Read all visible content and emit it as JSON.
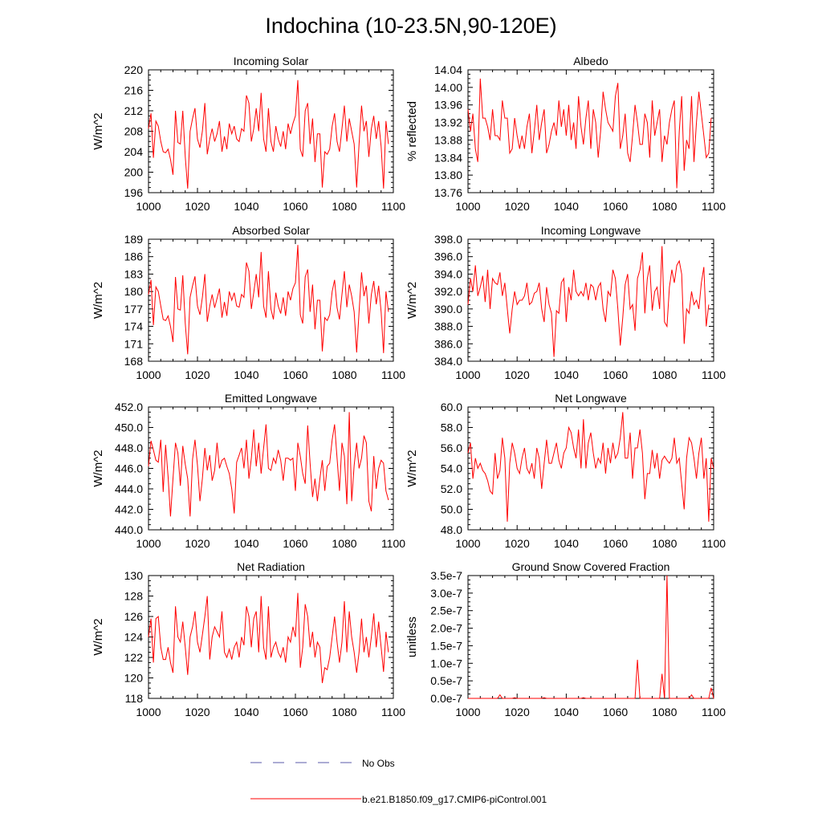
{
  "page_title": "Indochina (10-23.5N,90-120E)",
  "legend": {
    "obs_label": "No Obs",
    "obs_color": "#5a5aaa",
    "model_label": "b.e21.B1850.f09_g17.CMIP6-piControl.001",
    "model_color": "#ff0000"
  },
  "chart_data": [
    {
      "type": "line",
      "title": "Incoming Solar",
      "ylabel": "W/m^2",
      "xlim": [
        1000,
        1100
      ],
      "ylim": [
        196,
        220
      ],
      "xticks": [
        "1000",
        "1020",
        "1040",
        "1060",
        "1080",
        "1100"
      ],
      "yticks": [
        "196",
        "200",
        "204",
        "208",
        "212",
        "216",
        "220"
      ],
      "series": [
        {
          "name": "b.e21.B1850.f09_g17.CMIP6-piControl.001",
          "x0": 1000,
          "values": [
            208.5,
            211.5,
            202.8,
            210.0,
            209.0,
            206.0,
            204.0,
            203.8,
            204.5,
            202.5,
            199.5,
            212.0,
            205.8,
            205.5,
            212.0,
            203.0,
            196.8,
            208.0,
            210.5,
            212.5,
            206.5,
            204.8,
            208.0,
            213.5,
            203.5,
            206.5,
            208.5,
            206.0,
            207.5,
            210.0,
            204.0,
            207.0,
            204.5,
            209.5,
            207.5,
            209.0,
            206.5,
            206.0,
            208.5,
            208.0,
            215.0,
            213.5,
            206.0,
            208.5,
            212.5,
            208.0,
            215.5,
            206.5,
            204.0,
            212.5,
            206.0,
            204.0,
            209.0,
            206.5,
            205.0,
            208.0,
            204.5,
            209.5,
            207.5,
            209.5,
            211.0,
            218.0,
            204.5,
            203.0,
            212.0,
            213.5,
            205.5,
            210.5,
            202.0,
            207.5,
            207.5,
            197.0,
            204.0,
            203.5,
            204.5,
            209.0,
            211.5,
            206.0,
            204.0,
            208.5,
            213.0,
            206.0,
            210.5,
            208.0,
            205.5,
            197.0,
            205.5,
            213.0,
            208.0,
            210.0,
            203.0,
            208.5,
            211.0,
            206.5,
            210.0,
            205.0,
            196.8,
            210.0,
            205.5
          ]
        }
      ]
    },
    {
      "type": "line",
      "title": "Albedo",
      "ylabel": "% reflected",
      "xlim": [
        1000,
        1100
      ],
      "ylim": [
        13.76,
        14.04
      ],
      "xticks": [
        "1000",
        "1020",
        "1040",
        "1060",
        "1080",
        "1100"
      ],
      "yticks": [
        "13.76",
        "13.80",
        "13.84",
        "13.88",
        "13.92",
        "13.96",
        "14.00",
        "14.04"
      ],
      "series": [
        {
          "name": "b.e21.B1850.f09_g17.CMIP6-piControl.001",
          "x0": 1000,
          "values": [
            13.95,
            13.9,
            13.94,
            13.86,
            13.83,
            14.02,
            13.93,
            13.93,
            13.91,
            13.88,
            13.95,
            13.89,
            13.89,
            13.88,
            13.97,
            13.93,
            13.93,
            13.85,
            13.86,
            13.93,
            13.89,
            13.86,
            13.89,
            13.86,
            13.91,
            13.94,
            13.85,
            13.9,
            13.96,
            13.88,
            13.92,
            13.95,
            13.85,
            13.87,
            13.9,
            13.92,
            13.89,
            13.97,
            13.91,
            13.95,
            13.89,
            13.96,
            13.88,
            13.92,
            13.86,
            13.98,
            13.91,
            13.87,
            13.93,
            13.97,
            13.86,
            13.95,
            13.92,
            13.84,
            13.9,
            13.99,
            13.95,
            13.92,
            13.91,
            13.9,
            13.98,
            14.01,
            13.86,
            13.89,
            13.94,
            13.85,
            13.83,
            13.89,
            13.96,
            13.92,
            13.87,
            13.87,
            13.94,
            13.92,
            13.84,
            13.97,
            13.89,
            13.92,
            13.95,
            13.83,
            13.89,
            13.87,
            13.92,
            13.95,
            13.97,
            13.77,
            13.9,
            13.98,
            13.81,
            13.88,
            13.86,
            13.98,
            13.83,
            13.92,
            13.99,
            13.94,
            13.89,
            13.84,
            13.85,
            13.93
          ]
        }
      ]
    },
    {
      "type": "line",
      "title": "Absorbed Solar",
      "ylabel": "W/m^2",
      "xlim": [
        1000,
        1100
      ],
      "ylim": [
        168,
        189
      ],
      "xticks": [
        "1000",
        "1020",
        "1040",
        "1060",
        "1080",
        "1100"
      ],
      "yticks": [
        "168",
        "171",
        "174",
        "177",
        "180",
        "183",
        "186",
        "189"
      ],
      "series": [
        {
          "name": "b.e21.B1850.f09_g17.CMIP6-piControl.001",
          "x0": 1000,
          "values": [
            179.5,
            182.0,
            174.2,
            180.8,
            180.0,
            177.5,
            175.2,
            175.0,
            175.8,
            174.0,
            171.3,
            182.5,
            177.0,
            176.8,
            182.8,
            174.5,
            169.2,
            179.0,
            181.0,
            182.6,
            177.5,
            176.0,
            179.0,
            183.0,
            174.8,
            177.5,
            179.5,
            177.2,
            178.8,
            180.5,
            175.5,
            178.2,
            175.8,
            180.0,
            178.5,
            179.8,
            177.5,
            177.3,
            179.5,
            179.0,
            185.0,
            183.5,
            177.0,
            179.8,
            183.0,
            179.0,
            186.8,
            177.5,
            175.5,
            183.5,
            177.0,
            175.2,
            179.8,
            177.5,
            176.2,
            179.0,
            175.8,
            180.0,
            178.5,
            180.5,
            181.5,
            188.0,
            176.0,
            174.5,
            182.5,
            183.8,
            176.5,
            181.2,
            173.5,
            178.5,
            178.5,
            169.7,
            175.5,
            175.0,
            176.0,
            180.0,
            182.0,
            177.2,
            175.2,
            179.5,
            183.5,
            177.3,
            181.2,
            179.2,
            176.5,
            169.5,
            176.5,
            183.3,
            179.2,
            181.0,
            174.5,
            179.5,
            181.8,
            177.8,
            181.0,
            176.5,
            169.4,
            180.0,
            176.5
          ]
        }
      ]
    },
    {
      "type": "line",
      "title": "Incoming Longwave",
      "ylabel": "W/m^2",
      "xlim": [
        1000,
        1100
      ],
      "ylim": [
        384.0,
        398.0
      ],
      "xticks": [
        "1000",
        "1020",
        "1040",
        "1060",
        "1080",
        "1100"
      ],
      "yticks": [
        "384.0",
        "386.0",
        "388.0",
        "390.0",
        "392.0",
        "394.0",
        "396.0",
        "398.0"
      ],
      "series": [
        {
          "name": "b.e21.B1850.f09_g17.CMIP6-piControl.001",
          "x0": 1000,
          "values": [
            390.5,
            393.5,
            392.0,
            395.0,
            391.5,
            392.5,
            393.8,
            390.8,
            394.5,
            390.0,
            393.5,
            393.0,
            392.8,
            394.2,
            391.5,
            393.0,
            390.0,
            387.2,
            390.0,
            392.0,
            390.5,
            391.0,
            391.0,
            391.5,
            393.0,
            390.5,
            390.8,
            391.8,
            392.0,
            393.0,
            390.0,
            388.5,
            392.5,
            390.5,
            389.5,
            384.5,
            389.8,
            389.5,
            393.0,
            393.5,
            388.5,
            392.5,
            391.0,
            394.5,
            392.0,
            391.5,
            392.0,
            391.5,
            393.0,
            391.0,
            392.8,
            392.5,
            391.0,
            392.5,
            393.0,
            390.0,
            388.5,
            392.0,
            391.5,
            394.5,
            393.5,
            390.0,
            385.8,
            389.0,
            392.8,
            394.0,
            390.0,
            390.5,
            387.5,
            393.5,
            394.5,
            396.5,
            389.5,
            393.5,
            395.0,
            389.8,
            392.0,
            392.5,
            390.0,
            397.2,
            388.5,
            388.0,
            392.5,
            394.5,
            393.0,
            395.0,
            395.5,
            394.0,
            386.0,
            390.0,
            389.5,
            392.0,
            390.5,
            391.0,
            390.0,
            393.0,
            394.8,
            388.0,
            390.5
          ]
        }
      ]
    },
    {
      "type": "line",
      "title": "Emitted Longwave",
      "ylabel": "W/m^2",
      "xlim": [
        1000,
        1100
      ],
      "ylim": [
        440.0,
        452.0
      ],
      "xticks": [
        "1000",
        "1020",
        "1040",
        "1060",
        "1080",
        "1100"
      ],
      "yticks": [
        "440.0",
        "442.0",
        "444.0",
        "446.0",
        "448.0",
        "450.0",
        "452.0"
      ],
      "series": [
        {
          "name": "b.e21.B1850.f09_g17.CMIP6-piControl.001",
          "x0": 1000,
          "values": [
            446.2,
            448.7,
            447.8,
            446.8,
            446.6,
            448.8,
            443.7,
            448.3,
            445.2,
            441.3,
            445.0,
            448.5,
            447.5,
            444.3,
            448.2,
            446.4,
            445.0,
            441.3,
            446.9,
            448.8,
            446.3,
            442.8,
            445.0,
            448.0,
            445.8,
            447.3,
            444.8,
            445.8,
            448.5,
            446.0,
            446.8,
            447.0,
            446.2,
            445.5,
            444.0,
            441.6,
            446.6,
            447.3,
            448.0,
            446.0,
            448.8,
            445.0,
            447.0,
            449.8,
            446.2,
            448.5,
            445.5,
            448.0,
            450.3,
            446.0,
            445.8,
            447.0,
            446.5,
            447.8,
            446.8,
            444.8,
            447.0,
            447.0,
            446.8,
            447.0,
            443.8,
            448.5,
            447.2,
            445.5,
            444.5,
            450.2,
            446.5,
            443.2,
            445.0,
            442.8,
            445.0,
            446.8,
            443.8,
            446.2,
            446.5,
            448.8,
            450.3,
            447.0,
            443.8,
            448.5,
            447.2,
            442.5,
            451.5,
            442.8,
            446.3,
            448.5,
            446.0,
            447.0,
            449.2,
            448.5,
            442.8,
            441.8,
            447.2,
            444.0,
            446.0,
            446.8,
            446.5,
            443.8,
            442.9
          ]
        }
      ]
    },
    {
      "type": "line",
      "title": "Net Longwave",
      "ylabel": "W/m^2",
      "xlim": [
        1000,
        1100
      ],
      "ylim": [
        48.0,
        60.0
      ],
      "xticks": [
        "1000",
        "1020",
        "1040",
        "1060",
        "1080",
        "1100"
      ],
      "yticks": [
        "48.0",
        "50.0",
        "52.0",
        "54.0",
        "56.0",
        "58.0",
        "60.0"
      ],
      "series": [
        {
          "name": "b.e21.B1850.f09_g17.CMIP6-piControl.001",
          "x0": 1000,
          "values": [
            55.5,
            56.5,
            53.0,
            55.0,
            54.0,
            54.5,
            53.8,
            53.5,
            52.8,
            51.8,
            51.5,
            55.5,
            53.0,
            53.8,
            57.0,
            55.0,
            48.8,
            54.5,
            56.5,
            55.5,
            54.0,
            53.5,
            55.0,
            56.0,
            54.0,
            53.5,
            54.5,
            53.0,
            56.0,
            55.0,
            52.0,
            54.5,
            56.8,
            54.5,
            54.5,
            55.5,
            56.5,
            54.8,
            54.0,
            55.5,
            56.0,
            58.0,
            57.5,
            56.0,
            55.0,
            57.8,
            54.0,
            58.8,
            54.0,
            56.5,
            57.5,
            55.5,
            54.0,
            55.0,
            54.5,
            56.5,
            53.5,
            56.0,
            54.5,
            56.5,
            55.0,
            55.5,
            57.0,
            59.5,
            55.0,
            55.0,
            57.5,
            53.0,
            56.0,
            56.0,
            57.8,
            55.5,
            51.0,
            53.5,
            53.5,
            55.8,
            54.0,
            55.5,
            53.0,
            54.8,
            55.2,
            54.8,
            54.5,
            55.0,
            57.0,
            54.5,
            55.0,
            52.5,
            50.0,
            55.0,
            57.0,
            56.5,
            55.0,
            53.0,
            55.5,
            57.0,
            53.0,
            55.0,
            48.8,
            55.0,
            54.0
          ]
        }
      ]
    },
    {
      "type": "line",
      "title": "Net Radiation",
      "ylabel": "W/m^2",
      "xlim": [
        1000,
        1100
      ],
      "ylim": [
        118,
        130
      ],
      "xticks": [
        "1000",
        "1020",
        "1040",
        "1060",
        "1080",
        "1100"
      ],
      "yticks": [
        "118",
        "120",
        "122",
        "124",
        "126",
        "128",
        "130"
      ],
      "series": [
        {
          "name": "b.e21.B1850.f09_g17.CMIP6-piControl.001",
          "x0": 1000,
          "values": [
            124.0,
            125.8,
            121.5,
            125.8,
            126.0,
            123.0,
            121.8,
            121.8,
            123.0,
            121.5,
            120.5,
            127.0,
            124.0,
            123.5,
            125.5,
            123.0,
            120.3,
            124.0,
            125.0,
            126.5,
            123.5,
            122.5,
            124.2,
            126.0,
            128.0,
            121.8,
            124.0,
            125.0,
            124.5,
            124.0,
            126.5,
            122.5,
            122.0,
            122.8,
            121.8,
            123.0,
            123.5,
            122.0,
            124.0,
            123.2,
            127.0,
            126.0,
            123.0,
            125.8,
            126.5,
            122.5,
            128.0,
            123.0,
            121.8,
            127.0,
            122.0,
            123.0,
            123.5,
            122.5,
            122.0,
            123.0,
            121.5,
            124.0,
            123.5,
            125.0,
            124.0,
            128.3,
            121.0,
            123.0,
            127.2,
            126.0,
            123.0,
            124.5,
            122.0,
            123.5,
            123.0,
            119.5,
            121.0,
            120.8,
            122.0,
            124.0,
            126.0,
            123.5,
            121.5,
            123.5,
            127.5,
            122.5,
            126.5,
            124.0,
            122.5,
            120.5,
            122.5,
            125.8,
            122.5,
            124.0,
            122.0,
            124.0,
            126.3,
            123.0,
            125.5,
            123.0,
            120.6,
            124.5,
            122.5
          ]
        }
      ]
    },
    {
      "type": "line",
      "title": "Ground Snow Covered Fraction",
      "ylabel": "unitless",
      "xlim": [
        1000,
        1100
      ],
      "ylim": [
        0,
        3.5e-07
      ],
      "xticks": [
        "1000",
        "1020",
        "1040",
        "1060",
        "1080",
        "1100"
      ],
      "yticks": [
        "0.0e-7",
        "0.5e-7",
        "1.0e-7",
        "1.5e-7",
        "2.0e-7",
        "2.5e-7",
        "3.0e-7",
        "3.5e-7"
      ],
      "series": [
        {
          "name": "b.e21.B1850.f09_g17.CMIP6-piControl.001",
          "x0": 1000,
          "values": [
            0,
            0,
            0,
            0,
            0,
            0,
            0,
            0,
            0,
            0,
            0,
            0,
            0,
            1e-08,
            0,
            0,
            0,
            0,
            0,
            2e-09,
            0,
            0,
            0,
            0,
            0,
            0,
            0,
            0,
            0,
            0,
            0,
            2e-09,
            0,
            0,
            0,
            0,
            0,
            0,
            0,
            0,
            0,
            0,
            0,
            0,
            0,
            0,
            0,
            2e-09,
            0,
            0,
            0,
            0,
            0,
            0,
            0,
            0,
            0,
            0,
            0,
            0,
            0,
            0,
            0,
            0,
            0,
            0,
            0,
            0,
            0,
            1.1e-07,
            0,
            0,
            0,
            0,
            0,
            0,
            0,
            0,
            0,
            7e-08,
            0,
            3.5e-07,
            0,
            0,
            0,
            0,
            0,
            0,
            0,
            0,
            0,
            1e-08,
            0,
            0,
            0,
            0,
            0,
            0,
            0,
            3e-08,
            0
          ]
        }
      ]
    }
  ]
}
